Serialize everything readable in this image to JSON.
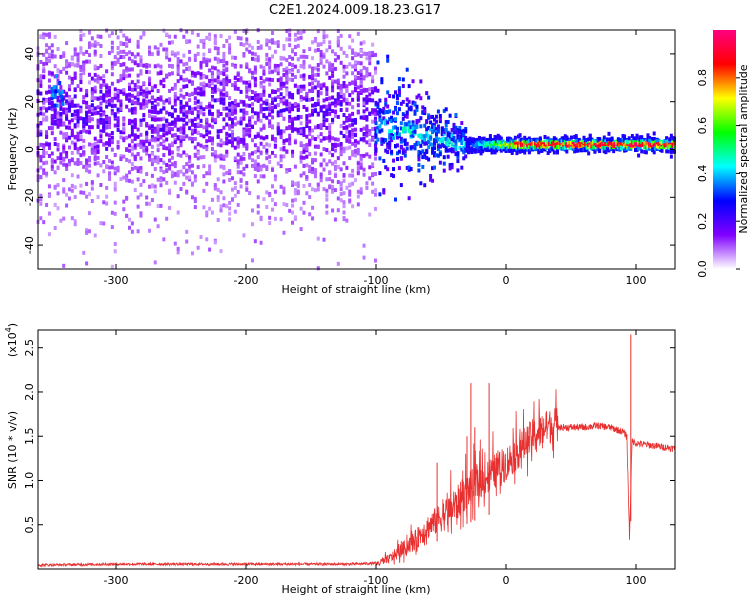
{
  "title": "C2E1.2024.009.18.23.G17",
  "chart_data": [
    {
      "type": "heatmap",
      "xlabel": "Height of straight line (km)",
      "ylabel": "Frequency (Hz)",
      "xlim": [
        -360,
        130
      ],
      "ylim": [
        -50,
        50
      ],
      "xticks": [
        -300,
        -200,
        -100,
        0,
        100
      ],
      "yticks": [
        -40,
        -20,
        0,
        20,
        40
      ],
      "colorbar": {
        "label": "Normalized spectral amplitude",
        "range": [
          0,
          1
        ],
        "ticks": [
          "0.0",
          "0.2",
          "0.4",
          "0.6",
          "0.8"
        ],
        "ticks_values": [
          0,
          0.2,
          0.4,
          0.6,
          0.8
        ],
        "colormap": [
          "#ffffff",
          "#8000ff",
          "#0000ff",
          "#00ffff",
          "#00ff00",
          "#ffff00",
          "#ff0000",
          "#ff0080"
        ]
      },
      "description_regions": [
        {
          "x": [
            -360,
            -100
          ],
          "frequency_center": 15,
          "frequency_spread": 25,
          "amplitude": 0.15
        },
        {
          "x": [
            -100,
            -30
          ],
          "frequency_center": 5,
          "frequency_spread": 10,
          "amplitude": 0.3
        },
        {
          "x": [
            -30,
            130
          ],
          "frequency_center": 2,
          "frequency_spread": 2,
          "amplitude": 0.9
        }
      ]
    },
    {
      "type": "line",
      "xlabel": "Height of straight line (km)",
      "ylabel": "SNR (10 * v/v)",
      "yscale_label": "(x10",
      "yscale_exp": "4",
      "xlim": [
        -360,
        130
      ],
      "ylim": [
        0,
        2.7
      ],
      "xticks": [
        -300,
        -200,
        -100,
        0,
        100
      ],
      "yticks": [
        "0.5",
        "1.0",
        "1.5",
        "2.0",
        "2.5"
      ],
      "yticks_values": [
        0.5,
        1.0,
        1.5,
        2.0,
        2.5
      ],
      "color": "#e83030",
      "series": [
        {
          "x": [
            -360,
            -300,
            -200,
            -120,
            -100,
            -90,
            -80,
            -70,
            -60,
            -55,
            -50,
            -45,
            -40,
            -35,
            -30,
            -25,
            -20,
            -15,
            -10,
            -5,
            0,
            10,
            20,
            30,
            40,
            50,
            60,
            70,
            80,
            90,
            93,
            95,
            97,
            100,
            110,
            120,
            130
          ],
          "y": [
            0.03,
            0.04,
            0.04,
            0.04,
            0.05,
            0.1,
            0.2,
            0.3,
            0.45,
            0.5,
            0.55,
            0.6,
            0.65,
            0.75,
            0.85,
            0.9,
            0.95,
            1.0,
            1.05,
            1.1,
            1.15,
            1.3,
            1.45,
            1.55,
            1.6,
            1.6,
            1.6,
            1.62,
            1.6,
            1.55,
            1.5,
            0.35,
            1.45,
            1.42,
            1.4,
            1.38,
            1.36
          ]
        }
      ],
      "spikes": [
        {
          "x": -53,
          "y": 1.2
        },
        {
          "x": -30,
          "y": 1.5
        },
        {
          "x": -27,
          "y": 2.1
        },
        {
          "x": -24,
          "y": 1.6
        },
        {
          "x": -13,
          "y": 2.1
        },
        {
          "x": 96,
          "y": 2.65
        }
      ]
    }
  ]
}
